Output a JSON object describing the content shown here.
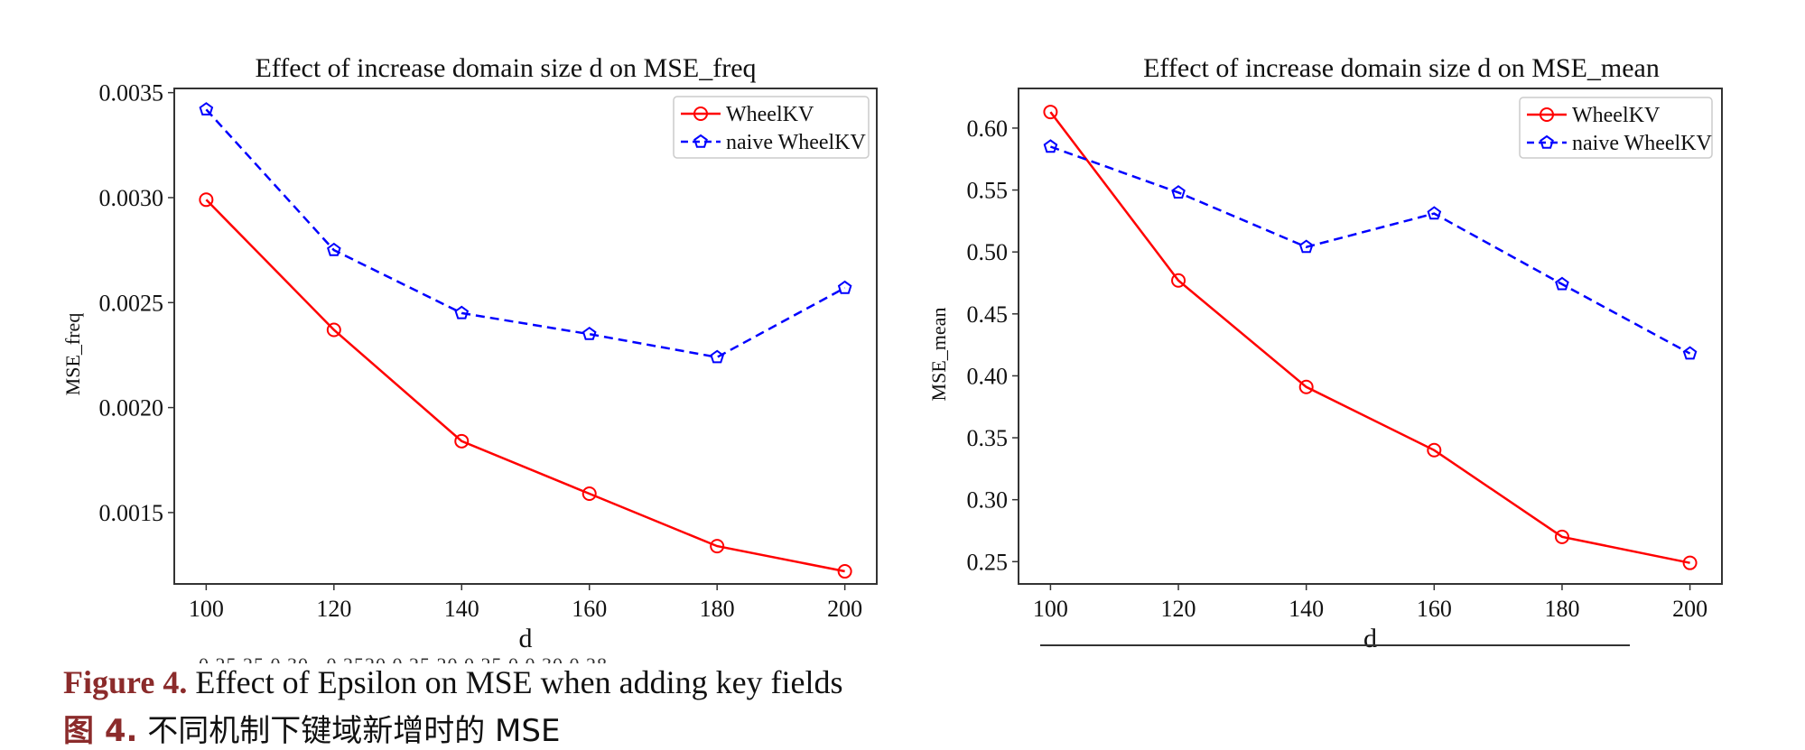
{
  "figure": {
    "caption_label_en": "Figure 4.",
    "caption_text_en": " Effect of Epsilon on MSE when adding key fields",
    "caption_label_zh": "图 4.",
    "caption_text_zh": " 不同机制下键域新增时的 MSE",
    "clipped_fragment_text": "0.25 25      0.30      .      0.2520  0.25 20              0.25         0  0.30  0.28"
  },
  "colors": {
    "wheelkv": "#ff0000",
    "naive_wheelkv": "#0000ff",
    "caption_label": "#8b2b2b",
    "axis": "#333333"
  },
  "chart_data": [
    {
      "type": "line",
      "title": "Effect of increase domain size d on MSE_freq",
      "xlabel": "d",
      "ylabel": "MSE_freq",
      "x": [
        100,
        120,
        140,
        160,
        180,
        200
      ],
      "xticks": [
        100,
        120,
        140,
        160,
        180,
        200
      ],
      "xtick_labels": [
        "100",
        "120",
        "140",
        "160",
        "180",
        "200"
      ],
      "yticks": [
        0.0015,
        0.002,
        0.0025,
        0.003,
        0.0035
      ],
      "ytick_labels": [
        "0.0015",
        "0.0020",
        "0.0025",
        "0.0030",
        "0.0035"
      ],
      "xlim": [
        95,
        205
      ],
      "ylim": [
        0.00116,
        0.00352
      ],
      "grid": false,
      "legend_position": "top-right",
      "series": [
        {
          "name": "WheelKV",
          "color": "#ff0000",
          "linestyle": "solid",
          "marker": "circle",
          "values": [
            0.00299,
            0.00237,
            0.00184,
            0.00159,
            0.00134,
            0.00122
          ]
        },
        {
          "name": "naive WheelKV",
          "color": "#0000ff",
          "linestyle": "dashed",
          "marker": "pentagon",
          "values": [
            0.00342,
            0.00275,
            0.00245,
            0.00235,
            0.00224,
            0.00257
          ]
        }
      ]
    },
    {
      "type": "line",
      "title": "Effect of increase domain size d on MSE_mean",
      "xlabel": "d",
      "ylabel": "MSE_mean",
      "x": [
        100,
        120,
        140,
        160,
        180,
        200
      ],
      "xticks": [
        100,
        120,
        140,
        160,
        180,
        200
      ],
      "xtick_labels": [
        "100",
        "120",
        "140",
        "160",
        "180",
        "200"
      ],
      "yticks": [
        0.25,
        0.3,
        0.35,
        0.4,
        0.45,
        0.5,
        0.55,
        0.6
      ],
      "ytick_labels": [
        "0.25",
        "0.30",
        "0.35",
        "0.40",
        "0.45",
        "0.50",
        "0.55",
        "0.60"
      ],
      "xlim": [
        95,
        205
      ],
      "ylim": [
        0.232,
        0.632
      ],
      "grid": false,
      "legend_position": "top-right",
      "series": [
        {
          "name": "WheelKV",
          "color": "#ff0000",
          "linestyle": "solid",
          "marker": "circle",
          "values": [
            0.613,
            0.477,
            0.391,
            0.34,
            0.27,
            0.249
          ]
        },
        {
          "name": "naive WheelKV",
          "color": "#0000ff",
          "linestyle": "dashed",
          "marker": "pentagon",
          "values": [
            0.585,
            0.548,
            0.504,
            0.531,
            0.474,
            0.418
          ]
        }
      ]
    }
  ]
}
